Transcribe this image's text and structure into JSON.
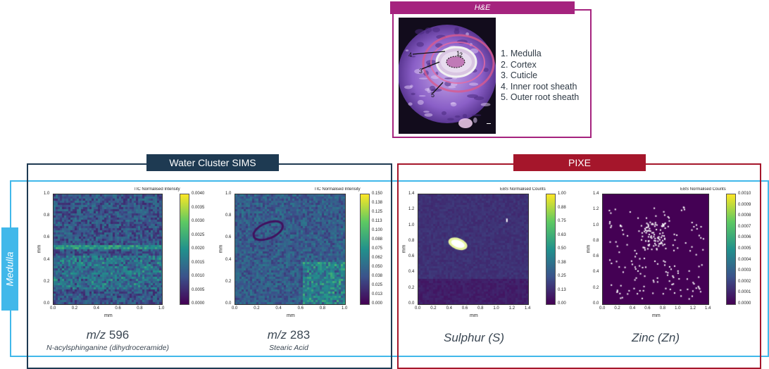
{
  "he": {
    "banner": "H&E",
    "image_labels": [
      "1",
      "2",
      "3",
      "4",
      "5"
    ],
    "structures": [
      "1. Medulla",
      "2. Cortex",
      "3. Cuticle",
      "4. Inner root sheath",
      "5. Outer root sheath"
    ]
  },
  "sims": {
    "banner": "Water Cluster SIMS"
  },
  "pixe": {
    "banner": "PIXE"
  },
  "row_label": "Medulla",
  "panels": [
    {
      "cb_title": "TIC Normalised Intensity",
      "cb_ticks": [
        "0.0040",
        "0.0035",
        "0.0030",
        "0.0025",
        "0.0020",
        "0.0015",
        "0.0010",
        "0.0005",
        "0.0000"
      ],
      "x_ticks": [
        "0.0",
        "0.2",
        "0.4",
        "0.6",
        "0.8",
        "1.0"
      ],
      "y_ticks": [
        "1.0",
        "0.8",
        "0.6",
        "0.4",
        "0.2",
        "0.0"
      ],
      "xlabel": "mm",
      "ylabel": "mm",
      "caption_ital": "m/z",
      "caption_num": " 596",
      "caption2": "N-acylsphinganine (dihydroceramide)"
    },
    {
      "cb_title": "TIC Normalised Intensity",
      "cb_ticks": [
        "0.150",
        "0.138",
        "0.125",
        "0.113",
        "0.100",
        "0.088",
        "0.075",
        "0.062",
        "0.050",
        "0.038",
        "0.025",
        "0.013",
        "0.000"
      ],
      "x_ticks": [
        "0.0",
        "0.2",
        "0.4",
        "0.6",
        "0.8",
        "1.0"
      ],
      "y_ticks": [
        "1.0",
        "0.8",
        "0.6",
        "0.4",
        "0.2",
        "0.0"
      ],
      "xlabel": "mm",
      "ylabel": "mm",
      "caption_ital": "m/z",
      "caption_num": " 283",
      "caption2": "Stearic Acid"
    },
    {
      "cb_title": "EBS Normalised Counts",
      "cb_ticks": [
        "1.00",
        "0.88",
        "0.75",
        "0.63",
        "0.50",
        "0.38",
        "0.25",
        "0.13",
        "0.00"
      ],
      "x_ticks": [
        "0.0",
        "0.2",
        "0.4",
        "0.6",
        "0.8",
        "1.0",
        "1.2",
        "1.4"
      ],
      "y_ticks": [
        "1.4",
        "1.2",
        "1.0",
        "0.8",
        "0.6",
        "0.4",
        "0.2",
        "0.0"
      ],
      "xlabel": "mm",
      "ylabel": "mm",
      "caption_ital": "Sulphur (S)",
      "caption_num": "",
      "caption2": ""
    },
    {
      "cb_title": "EBS Normalised Counts",
      "cb_ticks": [
        "0.0010",
        "0.0009",
        "0.0008",
        "0.0007",
        "0.0006",
        "0.0005",
        "0.0004",
        "0.0003",
        "0.0002",
        "0.0001",
        "0.0000"
      ],
      "x_ticks": [
        "0.0",
        "0.2",
        "0.4",
        "0.6",
        "0.8",
        "1.0",
        "1.2",
        "1.4"
      ],
      "y_ticks": [
        "1.4",
        "1.2",
        "1.0",
        "0.8",
        "0.6",
        "0.4",
        "0.2",
        "0.0"
      ],
      "xlabel": "mm",
      "ylabel": "mm",
      "caption_ital": "Zinc (Zn)",
      "caption_num": "",
      "caption2": ""
    }
  ],
  "colors": {
    "he_frame": "#a5237e",
    "sims_frame": "#1e3a52",
    "pixe_frame": "#a5162b",
    "medulla_frame": "#41b8ea",
    "colormap": [
      "#440154",
      "#3b528b",
      "#21918c",
      "#5ec962",
      "#fde725"
    ]
  }
}
